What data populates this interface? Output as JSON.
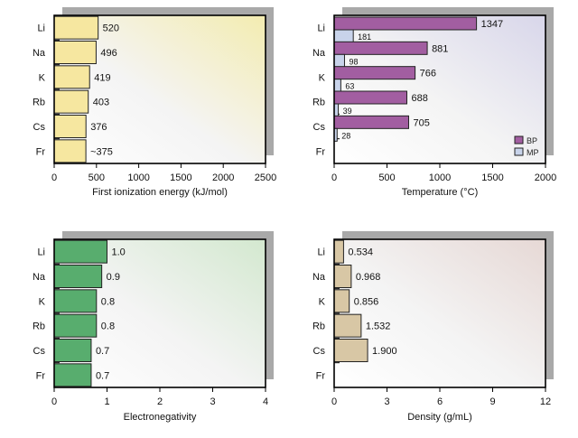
{
  "chart_data": [
    {
      "type": "bar",
      "orientation": "horizontal",
      "categories": [
        "Li",
        "Na",
        "K",
        "Rb",
        "Cs",
        "Fr"
      ],
      "series": [
        {
          "values": [
            520,
            496,
            419,
            403,
            376,
            375
          ],
          "color": "#f6e7a0"
        }
      ],
      "data_labels": [
        "520",
        "496",
        "419",
        "403",
        "376",
        "~375"
      ],
      "xlabel": "First ionization energy (kJ/mol)",
      "xlim": [
        0,
        2500
      ],
      "xticks": [
        0,
        500,
        1000,
        1500,
        2000,
        2500
      ],
      "tick_labels": [
        "0",
        "500",
        "1000",
        "1500",
        "2000",
        "2500"
      ],
      "background_tint": "#f3ecb0"
    },
    {
      "type": "bar",
      "orientation": "horizontal",
      "categories": [
        "Li",
        "Na",
        "K",
        "Rb",
        "Cs",
        "Fr"
      ],
      "series": [
        {
          "name": "BP",
          "values": [
            1347,
            881,
            766,
            688,
            705,
            null
          ],
          "color": "#a25ea1",
          "labels": [
            "1347",
            "881",
            "766",
            "688",
            "705",
            ""
          ]
        },
        {
          "name": "MP",
          "values": [
            181,
            98,
            63,
            39,
            28,
            null
          ],
          "color": "#c8d3ea",
          "labels": [
            "181",
            "98",
            "63",
            "39",
            "28",
            ""
          ]
        }
      ],
      "legend": "bottom-right",
      "xlabel": "Temperature (°C)",
      "xlim": [
        0,
        2000
      ],
      "xticks": [
        0,
        500,
        1000,
        1500,
        2000
      ],
      "tick_labels": [
        "0",
        "500",
        "1000",
        "1500",
        "2000"
      ],
      "background_tint": "#d8d6ea"
    },
    {
      "type": "bar",
      "orientation": "horizontal",
      "categories": [
        "Li",
        "Na",
        "K",
        "Rb",
        "Cs",
        "Fr"
      ],
      "series": [
        {
          "values": [
            1.0,
            0.9,
            0.8,
            0.8,
            0.7,
            0.7
          ],
          "color": "#58ad6e"
        }
      ],
      "data_labels": [
        "1.0",
        "0.9",
        "0.8",
        "0.8",
        "0.7",
        "0.7"
      ],
      "xlabel": "Electronegativity",
      "xlim": [
        0,
        4
      ],
      "xticks": [
        0,
        1,
        2,
        3,
        4
      ],
      "tick_labels": [
        "0",
        "1",
        "2",
        "3",
        "4"
      ],
      "background_tint": "#d3e8cf"
    },
    {
      "type": "bar",
      "orientation": "horizontal",
      "categories": [
        "Li",
        "Na",
        "K",
        "Rb",
        "Cs",
        "Fr"
      ],
      "series": [
        {
          "values": [
            0.534,
            0.968,
            0.856,
            1.532,
            1.9,
            null
          ],
          "color": "#d8c7a5"
        }
      ],
      "data_labels": [
        "0.534",
        "0.968",
        "0.856",
        "1.532",
        "1.900",
        ""
      ],
      "xlabel": "Density (g/mL)",
      "xlim": [
        0,
        12
      ],
      "xticks": [
        0,
        3,
        6,
        9,
        12
      ],
      "tick_labels": [
        "0",
        "3",
        "6",
        "9",
        "12"
      ],
      "background_tint": "#e6d8d5"
    }
  ]
}
